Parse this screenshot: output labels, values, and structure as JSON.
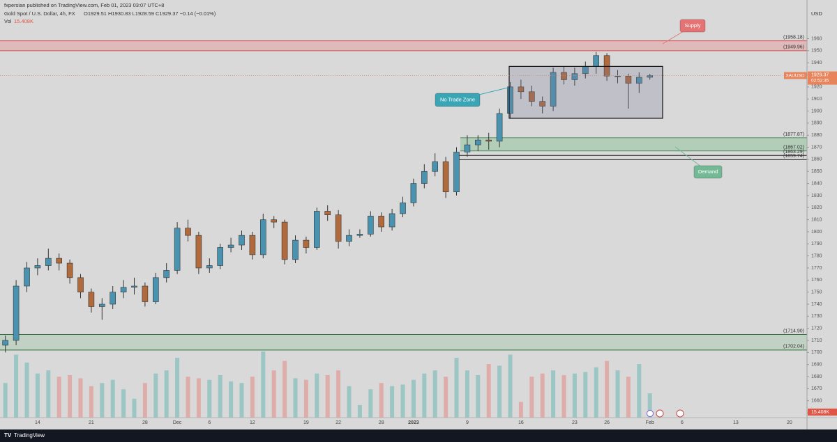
{
  "chart_data": {
    "type": "candlestick",
    "header": {
      "publisher": "fxpersian published on TradingView.com, Feb 01, 2023 03:07 UTC+8",
      "symbol_line": "Gold Spot / U.S. Dollar, 4h, FX",
      "ohlc": "O1929.51 H1930.83 L1928.59 C1929.37 −0.14 (−0.01%)",
      "volume_name": "Vol",
      "volume_value": "15.408K"
    },
    "currency": "USD",
    "brand": "TradingView",
    "categories": [
      null,
      null,
      null,
      "14",
      null,
      null,
      null,
      null,
      "21",
      null,
      null,
      null,
      null,
      "28",
      null,
      null,
      "Dec",
      null,
      null,
      "6",
      null,
      null,
      null,
      "12",
      null,
      null,
      null,
      null,
      "19",
      null,
      null,
      "22",
      null,
      null,
      null,
      "28",
      null,
      null,
      "2023",
      null,
      null,
      null,
      null,
      "9",
      null,
      null,
      null,
      null,
      "16",
      null,
      null,
      null,
      null,
      "23",
      null,
      null,
      "26",
      null,
      null,
      null,
      "Feb",
      null,
      null,
      "6",
      null,
      null,
      null,
      null,
      "13",
      null,
      null,
      null,
      null,
      "20",
      null
    ],
    "open": [
      1706,
      1710,
      1755,
      1770,
      1772,
      1778,
      1774,
      1762,
      1750,
      1738,
      1740,
      1750,
      1754,
      1755,
      1742,
      1762,
      1768,
      1803,
      1797,
      1770,
      1772,
      1787,
      1789,
      1797,
      1781,
      1810,
      1808,
      1777,
      1793,
      1787,
      1817,
      1814,
      1792,
      1797,
      1798,
      1813,
      1804,
      1815,
      1824,
      1840,
      1850,
      1858,
      1833,
      1866,
      1872,
      1876,
      1875,
      1898,
      1920,
      1916,
      1908,
      1904,
      1932,
      1926,
      1931,
      1937,
      1946,
      1929,
      1929,
      1923,
      1928,
      null,
      null,
      null,
      null,
      null,
      null,
      null,
      null,
      null,
      null,
      null,
      null,
      null,
      null
    ],
    "high": [
      1714,
      1760,
      1775,
      1778,
      1786,
      1782,
      1777,
      1765,
      1753,
      1745,
      1755,
      1760,
      1762,
      1758,
      1766,
      1774,
      1808,
      1810,
      1800,
      1778,
      1790,
      1795,
      1801,
      1800,
      1815,
      1813,
      1810,
      1797,
      1796,
      1820,
      1822,
      1818,
      1802,
      1802,
      1817,
      1816,
      1819,
      1829,
      1844,
      1856,
      1865,
      1862,
      1870,
      1880,
      1880,
      1882,
      1902,
      1924,
      1926,
      1921,
      1912,
      1936,
      1937,
      1936,
      1941,
      1949,
      1948,
      1934,
      1931,
      1932,
      1930.83,
      null,
      null,
      null,
      null,
      null,
      null,
      null,
      null,
      null,
      null,
      null,
      null,
      null,
      null
    ],
    "low": [
      1700,
      1706,
      1750,
      1764,
      1768,
      1768,
      1757,
      1745,
      1733,
      1727,
      1736,
      1745,
      1748,
      1738,
      1740,
      1758,
      1765,
      1792,
      1765,
      1766,
      1769,
      1783,
      1785,
      1777,
      1778,
      1803,
      1773,
      1774,
      1782,
      1785,
      1809,
      1786,
      1788,
      1795,
      1796,
      1800,
      1801,
      1812,
      1821,
      1836,
      1846,
      1828,
      1830,
      1862,
      1867,
      1868,
      1870,
      1894,
      1910,
      1904,
      1898,
      1900,
      1922,
      1921,
      1927,
      1931,
      1925,
      1923,
      1902,
      1915,
      1926,
      null,
      null,
      null,
      null,
      null,
      null,
      null,
      null,
      null,
      null,
      null,
      null,
      null,
      null
    ],
    "close": [
      1710,
      1755,
      1770,
      1772,
      1778,
      1774,
      1762,
      1750,
      1738,
      1740,
      1750,
      1754,
      1755,
      1742,
      1762,
      1768,
      1803,
      1797,
      1770,
      1772,
      1787,
      1789,
      1797,
      1781,
      1810,
      1808,
      1777,
      1793,
      1787,
      1817,
      1814,
      1792,
      1797,
      1798,
      1813,
      1804,
      1815,
      1824,
      1840,
      1850,
      1858,
      1833,
      1866,
      1872,
      1876,
      1875,
      1898,
      1920,
      1916,
      1908,
      1904,
      1932,
      1926,
      1931,
      1937,
      1946,
      1929,
      1929,
      1923,
      1928,
      1929.37,
      null,
      null,
      null,
      null,
      null,
      null,
      null,
      null,
      null,
      null,
      null,
      null,
      null,
      null
    ],
    "volume": [
      22,
      40,
      35,
      28,
      30,
      26,
      27,
      25,
      20,
      22,
      24,
      18,
      12,
      22,
      28,
      30,
      38,
      26,
      25,
      24,
      27,
      23,
      22,
      26,
      42,
      30,
      36,
      25,
      24,
      28,
      27,
      30,
      20,
      8,
      18,
      22,
      20,
      21,
      24,
      28,
      30,
      26,
      38,
      30,
      27,
      34,
      33,
      40,
      10,
      26,
      28,
      30,
      27,
      28,
      29,
      32,
      36,
      30,
      26,
      34,
      15.408,
      null,
      null,
      null,
      null,
      null,
      null,
      null,
      null,
      null,
      null,
      null,
      null,
      null,
      null
    ],
    "up_color": "#4a93b0",
    "down_color": "#b06a3c",
    "ylim": [
      1646,
      1992
    ],
    "yticks": [
      1650,
      1660,
      1670,
      1680,
      1690,
      1700,
      1710,
      1720,
      1730,
      1740,
      1750,
      1760,
      1770,
      1780,
      1790,
      1800,
      1810,
      1820,
      1830,
      1840,
      1850,
      1860,
      1870,
      1880,
      1890,
      1900,
      1910,
      1920,
      1930,
      1940,
      1950,
      1960
    ],
    "zones": [
      {
        "top": {
          "value": 1958.18,
          "label": "(1958.18)"
        },
        "bottom": {
          "value": 1949.96,
          "label": "(1949.96)"
        },
        "color": "#d94a4a",
        "fill": "rgba(235,130,130,0.35)"
      },
      {
        "top": {
          "value": 1877.87,
          "label": "(1877.87)"
        },
        "bottom": {
          "value": 1867.02,
          "label": "(1867.02)"
        },
        "color": "#4f8c5e",
        "fill": "rgba(130,190,145,0.45)"
      },
      {
        "top": {
          "value": 1863.29,
          "label": "(1863.29)"
        },
        "bottom": {
          "value": 1859.74,
          "label": "(1859.74)"
        },
        "color": "#222222",
        "fill": "none"
      },
      {
        "top": {
          "value": 1714.9,
          "label": "(1714.90)"
        },
        "bottom": {
          "value": 1702.04,
          "label": "(1702.04)"
        },
        "color": "#2f6b3c",
        "fill": "rgba(140,195,150,0.3)"
      }
    ],
    "box": {
      "top": 1937,
      "bottom": 1894
    },
    "annotations": [
      {
        "text": "Supply",
        "color": "#e57373"
      },
      {
        "text": "No Trade Zone",
        "color": "#3aa6b5"
      },
      {
        "text": "Demand",
        "color": "#74b995"
      }
    ],
    "last_price": {
      "symbol": "XAUUSD",
      "value": 1929.37,
      "countdown": "02:52:35",
      "color": "#e8845c"
    },
    "volume_badge_color": "#e05545"
  }
}
